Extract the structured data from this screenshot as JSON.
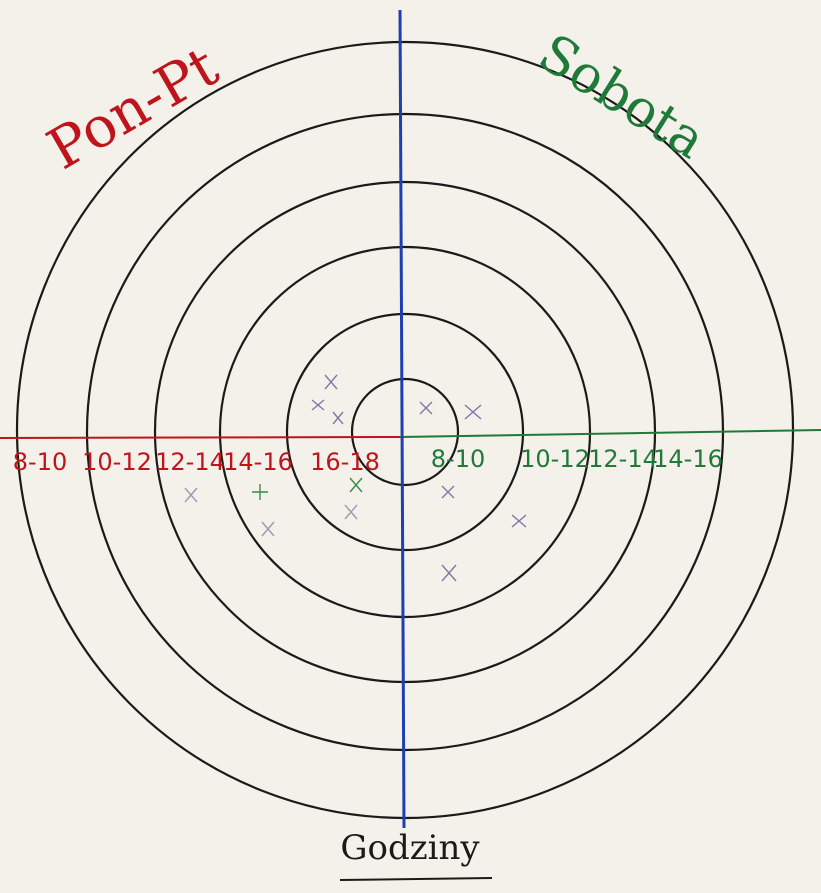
{
  "title_left": "Pon-Pt",
  "title_right": "Sobota",
  "axis_label": "Godziny",
  "left_labels": [
    "8-10",
    "10-12",
    "12-14",
    "14-16",
    "16-18"
  ],
  "right_labels": [
    "8-10",
    "10-12",
    "12-14",
    "14-16"
  ]
}
